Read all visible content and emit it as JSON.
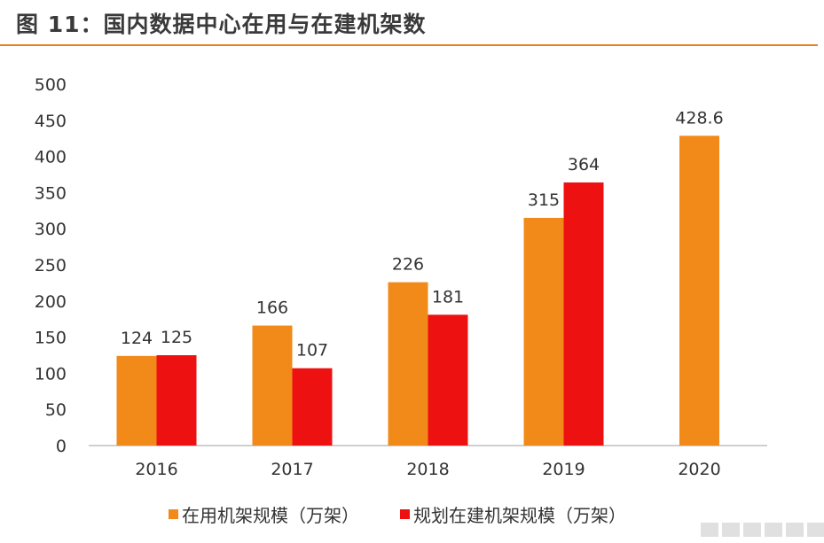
{
  "title": "图 11：国内数据中心在用与在建机架数",
  "colors": {
    "accent": "#e8821e",
    "series_in_use": "#f28a1a",
    "series_planned": "#ee1111"
  },
  "chart_data": {
    "type": "bar",
    "categories": [
      "2016",
      "2017",
      "2018",
      "2019",
      "2020"
    ],
    "series": [
      {
        "name": "在用机架规模（万架）",
        "values": [
          124,
          166,
          226,
          315,
          428.6
        ],
        "labels": [
          "124",
          "166",
          "226",
          "315",
          "428.6"
        ]
      },
      {
        "name": "规划在建机架规模（万架）",
        "values": [
          125,
          107,
          181,
          364,
          null
        ],
        "labels": [
          "125",
          "107",
          "181",
          "364",
          ""
        ]
      }
    ],
    "yticks": [
      "0",
      "50",
      "100",
      "150",
      "200",
      "250",
      "300",
      "350",
      "400",
      "450",
      "500"
    ],
    "ylim": [
      0,
      500
    ],
    "grid": false,
    "legend_position": "bottom"
  }
}
